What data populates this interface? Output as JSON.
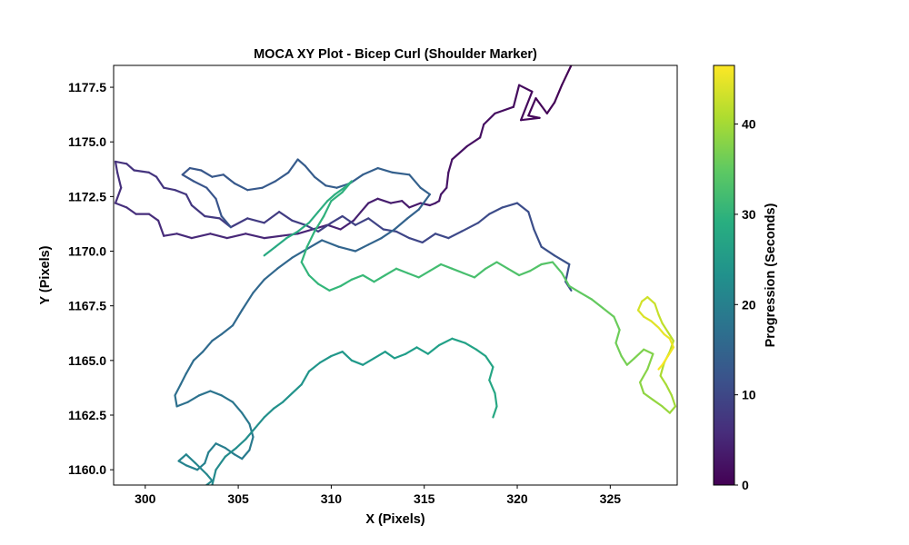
{
  "chart_data": {
    "type": "line",
    "title": "MOCA XY Plot - Bicep Curl (Shoulder Marker)",
    "xlabel": "X (Pixels)",
    "ylabel": "Y (Pixels)",
    "xlim": [
      298.3,
      328.6
    ],
    "ylim": [
      1159.3,
      1178.5
    ],
    "xticks": [
      300,
      305,
      310,
      315,
      320,
      325
    ],
    "yticks": [
      1160.0,
      1162.5,
      1165.0,
      1167.5,
      1170.0,
      1172.5,
      1175.0,
      1177.5
    ],
    "ytick_labels": [
      "1160.0",
      "1162.5",
      "1165.0",
      "1167.5",
      "1170.0",
      "1172.5",
      "1175.0",
      "1177.5"
    ],
    "grid": false,
    "colormap": "viridis",
    "colorbar": {
      "label": "Progression (Seconds)",
      "range": [
        0,
        46.5
      ],
      "ticks": [
        0,
        10,
        20,
        30,
        40
      ]
    },
    "series": [
      {
        "t_start": 0,
        "t_end": 4,
        "points": [
          [
            322.9,
            1178.5
          ],
          [
            322.4,
            1177.6
          ],
          [
            322.0,
            1176.8
          ],
          [
            321.6,
            1176.3
          ],
          [
            321.0,
            1177.0
          ],
          [
            320.6,
            1176.2
          ],
          [
            321.2,
            1176.1
          ],
          [
            320.2,
            1176.0
          ],
          [
            320.8,
            1177.3
          ],
          [
            320.1,
            1177.6
          ],
          [
            319.8,
            1176.6
          ],
          [
            318.8,
            1176.3
          ],
          [
            318.2,
            1175.8
          ],
          [
            318.0,
            1175.2
          ],
          [
            317.3,
            1174.8
          ],
          [
            316.5,
            1174.2
          ],
          [
            316.3,
            1173.6
          ],
          [
            316.2,
            1172.9
          ],
          [
            315.9,
            1172.6
          ],
          [
            315.8,
            1172.3
          ],
          [
            315.6,
            1172.2
          ],
          [
            315.3,
            1172.1
          ],
          [
            314.8,
            1172.2
          ],
          [
            314.2,
            1172.0
          ],
          [
            313.8,
            1172.3
          ],
          [
            313.2,
            1172.2
          ],
          [
            312.5,
            1172.4
          ],
          [
            312.0,
            1172.2
          ]
        ]
      },
      {
        "t_start": 4,
        "t_end": 8,
        "points": [
          [
            312.0,
            1172.2
          ],
          [
            311.6,
            1171.8
          ],
          [
            311.2,
            1171.4
          ],
          [
            310.5,
            1171.0
          ],
          [
            309.8,
            1171.2
          ],
          [
            309.0,
            1171.0
          ],
          [
            308.2,
            1170.8
          ],
          [
            307.3,
            1170.7
          ],
          [
            306.4,
            1170.6
          ],
          [
            305.4,
            1170.8
          ],
          [
            304.4,
            1170.6
          ],
          [
            303.5,
            1170.8
          ],
          [
            302.5,
            1170.6
          ],
          [
            301.7,
            1170.8
          ],
          [
            301.0,
            1170.7
          ],
          [
            300.7,
            1171.4
          ],
          [
            300.2,
            1171.7
          ],
          [
            299.5,
            1171.7
          ],
          [
            299.0,
            1172.0
          ],
          [
            298.4,
            1172.2
          ],
          [
            298.7,
            1172.9
          ],
          [
            298.5,
            1173.6
          ],
          [
            298.4,
            1174.1
          ],
          [
            299.0,
            1174.0
          ],
          [
            299.4,
            1173.7
          ],
          [
            300.2,
            1173.6
          ],
          [
            300.6,
            1173.4
          ],
          [
            301.0,
            1172.9
          ],
          [
            301.6,
            1172.8
          ],
          [
            302.2,
            1172.6
          ],
          [
            302.5,
            1172.1
          ],
          [
            303.2,
            1171.6
          ],
          [
            304.0,
            1171.5
          ],
          [
            304.6,
            1171.1
          ]
        ]
      },
      {
        "t_start": 8,
        "t_end": 12,
        "points": [
          [
            304.6,
            1171.1
          ],
          [
            305.5,
            1171.5
          ],
          [
            306.4,
            1171.3
          ],
          [
            307.2,
            1171.8
          ],
          [
            307.9,
            1171.4
          ],
          [
            308.6,
            1171.2
          ],
          [
            309.3,
            1170.9
          ],
          [
            310.0,
            1171.3
          ],
          [
            310.6,
            1171.6
          ],
          [
            311.3,
            1171.2
          ],
          [
            312.0,
            1171.5
          ],
          [
            312.8,
            1171.0
          ],
          [
            313.5,
            1170.9
          ],
          [
            314.2,
            1170.6
          ],
          [
            314.9,
            1170.4
          ],
          [
            315.6,
            1170.8
          ],
          [
            316.3,
            1170.6
          ],
          [
            317.0,
            1170.9
          ],
          [
            317.9,
            1171.3
          ],
          [
            318.5,
            1171.7
          ],
          [
            319.2,
            1172.0
          ],
          [
            320.0,
            1172.2
          ],
          [
            320.6,
            1171.8
          ],
          [
            320.9,
            1171.0
          ],
          [
            321.3,
            1170.2
          ],
          [
            322.0,
            1169.8
          ],
          [
            322.8,
            1169.4
          ],
          [
            322.6,
            1168.6
          ],
          [
            322.9,
            1168.2
          ]
        ]
      },
      {
        "t_start": 12,
        "t_end": 16,
        "points": [
          [
            304.6,
            1171.1
          ],
          [
            304.1,
            1171.6
          ],
          [
            303.8,
            1172.4
          ],
          [
            303.3,
            1172.9
          ],
          [
            302.6,
            1173.2
          ],
          [
            302.0,
            1173.5
          ],
          [
            302.4,
            1173.8
          ],
          [
            303.0,
            1173.7
          ],
          [
            303.6,
            1173.4
          ],
          [
            304.2,
            1173.5
          ],
          [
            304.8,
            1173.1
          ],
          [
            305.5,
            1172.8
          ],
          [
            306.3,
            1172.9
          ],
          [
            307.0,
            1173.2
          ],
          [
            307.7,
            1173.6
          ],
          [
            308.2,
            1174.2
          ],
          [
            308.6,
            1173.9
          ],
          [
            309.1,
            1173.4
          ],
          [
            309.7,
            1173.0
          ],
          [
            310.3,
            1172.9
          ],
          [
            311.0,
            1173.1
          ],
          [
            311.7,
            1173.5
          ],
          [
            312.5,
            1173.8
          ],
          [
            313.3,
            1173.6
          ],
          [
            314.2,
            1173.5
          ],
          [
            314.8,
            1172.9
          ],
          [
            315.3,
            1172.6
          ],
          [
            314.7,
            1171.9
          ],
          [
            314.1,
            1171.5
          ],
          [
            313.4,
            1171.0
          ],
          [
            312.7,
            1170.6
          ],
          [
            312.0,
            1170.3
          ],
          [
            311.3,
            1170.0
          ],
          [
            310.4,
            1170.2
          ],
          [
            309.5,
            1170.5
          ],
          [
            308.7,
            1170.1
          ],
          [
            307.9,
            1169.7
          ],
          [
            307.1,
            1169.2
          ],
          [
            306.4,
            1168.7
          ],
          [
            305.8,
            1168.1
          ],
          [
            305.2,
            1167.3
          ],
          [
            304.7,
            1166.6
          ],
          [
            304.1,
            1166.2
          ],
          [
            303.6,
            1165.9
          ]
        ]
      },
      {
        "t_start": 16,
        "t_end": 22,
        "points": [
          [
            303.6,
            1165.9
          ],
          [
            303.1,
            1165.4
          ],
          [
            302.6,
            1165.0
          ],
          [
            302.2,
            1164.4
          ],
          [
            301.9,
            1163.9
          ],
          [
            301.6,
            1163.4
          ],
          [
            301.7,
            1162.9
          ],
          [
            302.3,
            1163.1
          ],
          [
            302.9,
            1163.4
          ],
          [
            303.5,
            1163.6
          ],
          [
            304.1,
            1163.4
          ],
          [
            304.7,
            1163.1
          ],
          [
            305.2,
            1162.6
          ],
          [
            305.6,
            1162.1
          ],
          [
            305.8,
            1161.5
          ],
          [
            305.6,
            1160.9
          ],
          [
            305.2,
            1160.5
          ],
          [
            304.8,
            1160.7
          ],
          [
            304.3,
            1161.0
          ],
          [
            303.8,
            1161.2
          ],
          [
            303.4,
            1160.8
          ],
          [
            303.2,
            1160.3
          ],
          [
            302.8,
            1160.0
          ],
          [
            302.2,
            1160.2
          ],
          [
            301.8,
            1160.4
          ],
          [
            302.2,
            1160.7
          ],
          [
            302.7,
            1160.3
          ],
          [
            303.3,
            1159.8
          ],
          [
            303.6,
            1159.5
          ],
          [
            303.3,
            1159.3
          ]
        ]
      },
      {
        "t_start": 22,
        "t_end": 28,
        "points": [
          [
            303.6,
            1159.3
          ],
          [
            303.8,
            1160.0
          ],
          [
            304.3,
            1160.6
          ],
          [
            304.9,
            1161.0
          ],
          [
            305.4,
            1161.4
          ],
          [
            305.9,
            1161.9
          ],
          [
            306.4,
            1162.4
          ],
          [
            306.9,
            1162.8
          ],
          [
            307.4,
            1163.1
          ],
          [
            307.9,
            1163.5
          ],
          [
            308.4,
            1163.9
          ],
          [
            308.8,
            1164.5
          ],
          [
            309.4,
            1164.9
          ],
          [
            310.0,
            1165.2
          ],
          [
            310.6,
            1165.4
          ],
          [
            311.1,
            1165.0
          ],
          [
            311.7,
            1164.8
          ],
          [
            312.3,
            1165.1
          ],
          [
            312.9,
            1165.4
          ],
          [
            313.4,
            1165.1
          ],
          [
            314.0,
            1165.3
          ],
          [
            314.6,
            1165.6
          ],
          [
            315.2,
            1165.3
          ],
          [
            315.8,
            1165.7
          ],
          [
            316.5,
            1166.0
          ],
          [
            317.2,
            1165.8
          ],
          [
            317.8,
            1165.5
          ],
          [
            318.3,
            1165.2
          ],
          [
            318.7,
            1164.7
          ],
          [
            318.5,
            1164.1
          ],
          [
            318.8,
            1163.5
          ],
          [
            318.9,
            1162.9
          ],
          [
            318.7,
            1162.4
          ]
        ]
      },
      {
        "t_start": 28,
        "t_end": 34,
        "points": [
          [
            306.4,
            1169.8
          ],
          [
            307.0,
            1170.2
          ],
          [
            307.6,
            1170.6
          ],
          [
            308.2,
            1170.9
          ],
          [
            308.8,
            1171.3
          ],
          [
            309.3,
            1171.8
          ],
          [
            309.8,
            1172.3
          ],
          [
            310.2,
            1172.6
          ],
          [
            310.7,
            1172.9
          ],
          [
            311.1,
            1173.2
          ],
          [
            310.6,
            1172.7
          ],
          [
            310.0,
            1172.3
          ],
          [
            309.6,
            1171.6
          ],
          [
            309.1,
            1170.9
          ],
          [
            308.7,
            1170.2
          ],
          [
            308.4,
            1169.5
          ],
          [
            308.8,
            1168.9
          ],
          [
            309.3,
            1168.5
          ],
          [
            309.9,
            1168.2
          ],
          [
            310.5,
            1168.4
          ],
          [
            311.1,
            1168.7
          ],
          [
            311.7,
            1168.9
          ],
          [
            312.3,
            1168.6
          ],
          [
            312.9,
            1168.9
          ],
          [
            313.5,
            1169.2
          ],
          [
            314.1,
            1169.0
          ],
          [
            314.7,
            1168.8
          ],
          [
            315.3,
            1169.1
          ],
          [
            315.9,
            1169.4
          ],
          [
            316.5,
            1169.2
          ],
          [
            317.1,
            1169.0
          ],
          [
            317.7,
            1168.8
          ],
          [
            318.3,
            1169.2
          ],
          [
            318.9,
            1169.5
          ],
          [
            319.5,
            1169.2
          ],
          [
            320.1,
            1168.9
          ],
          [
            320.7,
            1169.1
          ],
          [
            321.3,
            1169.4
          ],
          [
            321.9,
            1169.5
          ]
        ]
      },
      {
        "t_start": 34,
        "t_end": 40,
        "points": [
          [
            321.9,
            1169.5
          ],
          [
            322.4,
            1169.0
          ],
          [
            322.8,
            1168.4
          ],
          [
            323.4,
            1168.1
          ],
          [
            324.0,
            1167.8
          ],
          [
            324.6,
            1167.4
          ],
          [
            325.2,
            1167.0
          ],
          [
            325.5,
            1166.4
          ],
          [
            325.3,
            1165.8
          ],
          [
            325.6,
            1165.2
          ],
          [
            325.9,
            1164.8
          ],
          [
            326.3,
            1165.1
          ],
          [
            326.8,
            1165.5
          ],
          [
            327.3,
            1165.3
          ],
          [
            327.0,
            1164.6
          ],
          [
            326.6,
            1164.0
          ],
          [
            326.8,
            1163.5
          ],
          [
            327.3,
            1163.2
          ],
          [
            327.8,
            1162.9
          ],
          [
            328.2,
            1162.6
          ],
          [
            328.5,
            1162.9
          ],
          [
            328.3,
            1163.4
          ]
        ]
      },
      {
        "t_start": 40,
        "t_end": 46.5,
        "points": [
          [
            328.3,
            1163.4
          ],
          [
            328.0,
            1163.9
          ],
          [
            327.7,
            1164.3
          ],
          [
            327.9,
            1164.9
          ],
          [
            328.2,
            1165.4
          ],
          [
            328.4,
            1165.9
          ],
          [
            328.1,
            1166.3
          ],
          [
            327.8,
            1166.7
          ],
          [
            327.6,
            1167.1
          ],
          [
            327.4,
            1167.6
          ],
          [
            327.0,
            1167.9
          ],
          [
            326.7,
            1167.7
          ],
          [
            326.5,
            1167.3
          ],
          [
            326.8,
            1167.0
          ],
          [
            327.2,
            1166.8
          ],
          [
            327.6,
            1166.5
          ],
          [
            327.9,
            1166.2
          ],
          [
            328.2,
            1166.0
          ],
          [
            328.4,
            1165.6
          ],
          [
            328.1,
            1165.2
          ],
          [
            327.8,
            1164.8
          ],
          [
            327.6,
            1164.6
          ]
        ]
      }
    ]
  }
}
